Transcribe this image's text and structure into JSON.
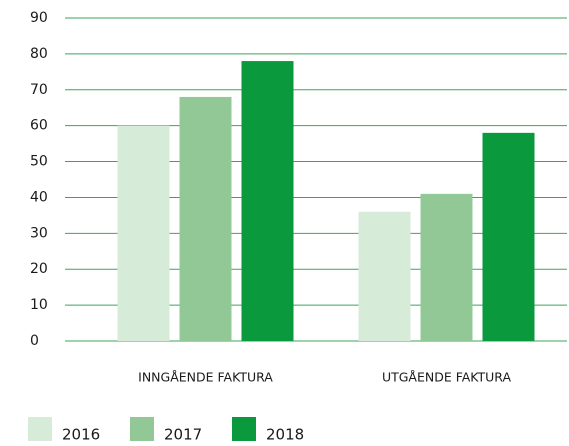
{
  "chart_data": {
    "type": "bar",
    "categories": [
      "INNGÅENDE FAKTURA",
      "UTGÅENDE FAKTURA"
    ],
    "series": [
      {
        "name": "2016",
        "color": "#d7ebd9",
        "values": [
          60,
          36
        ]
      },
      {
        "name": "2017",
        "color": "#92c896",
        "values": [
          68,
          41
        ]
      },
      {
        "name": "2018",
        "color": "#0a9a3d",
        "values": [
          78,
          58
        ]
      }
    ],
    "ylim": [
      0,
      90
    ],
    "yticks": [
      0,
      10,
      20,
      30,
      40,
      50,
      60,
      70,
      80,
      90
    ],
    "grid": true,
    "grid_color": "#3aa55a",
    "legend": "bottom"
  }
}
